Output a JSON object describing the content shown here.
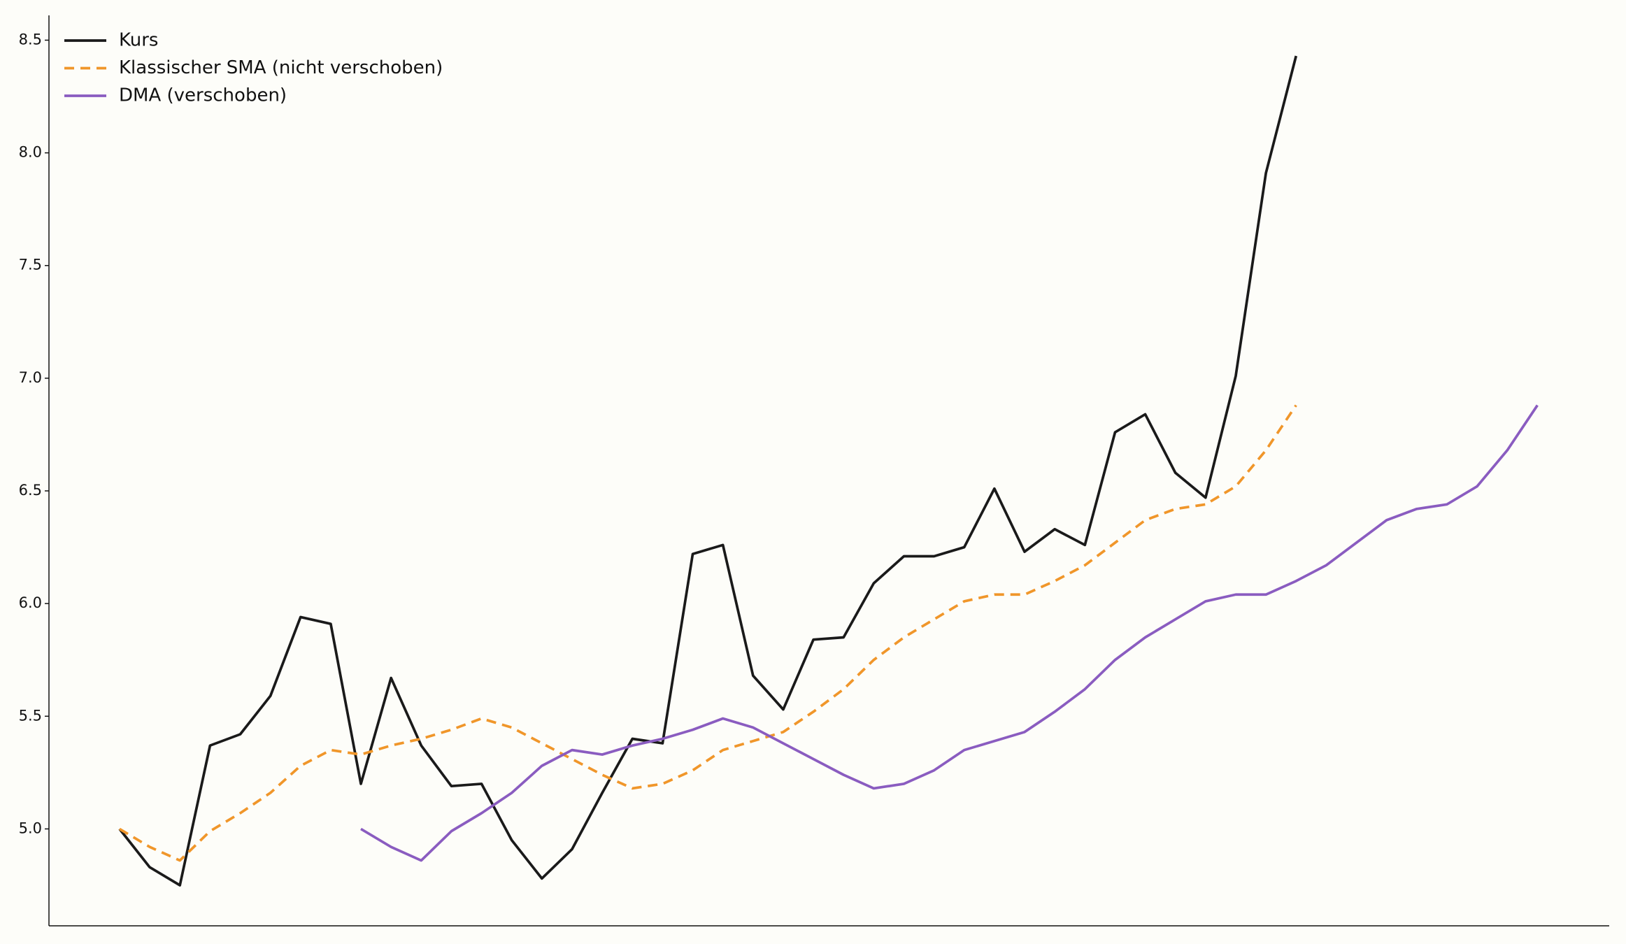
{
  "chart_data": {
    "type": "line",
    "x": [
      0,
      1,
      2,
      3,
      4,
      5,
      6,
      7,
      8,
      9,
      10,
      11,
      12,
      13,
      14,
      15,
      16,
      17,
      18,
      19,
      20,
      21,
      22,
      23,
      24,
      25,
      26,
      27,
      28,
      29,
      30,
      31,
      32,
      33,
      34,
      35,
      36,
      37,
      38,
      39,
      40,
      41,
      42,
      43,
      44,
      45,
      46,
      47
    ],
    "series": [
      {
        "name": "Kurs",
        "color": "#1a1a1a",
        "linestyle": "solid",
        "values": [
          5.0,
          4.83,
          4.75,
          5.37,
          5.42,
          5.59,
          5.94,
          5.91,
          5.2,
          5.67,
          5.37,
          5.19,
          5.2,
          4.95,
          4.78,
          4.91,
          5.16,
          5.4,
          5.38,
          6.22,
          6.26,
          5.68,
          5.53,
          5.84,
          5.85,
          6.09,
          6.21,
          6.21,
          6.25,
          6.51,
          6.23,
          6.33,
          6.26,
          6.76,
          6.84,
          6.58,
          6.47,
          7.01,
          7.91,
          8.43,
          null,
          null,
          null,
          null,
          null,
          null,
          null,
          null
        ]
      },
      {
        "name": "Klassischer SMA (nicht verschoben)",
        "color": "#f0962a",
        "linestyle": "dashed",
        "values": [
          5.0,
          4.92,
          4.86,
          4.99,
          5.07,
          5.16,
          5.28,
          5.35,
          5.33,
          5.37,
          5.4,
          5.44,
          5.49,
          5.45,
          5.38,
          5.31,
          5.24,
          5.18,
          5.2,
          5.26,
          5.35,
          5.39,
          5.43,
          5.52,
          5.62,
          5.75,
          5.85,
          5.93,
          6.01,
          6.04,
          6.04,
          6.1,
          6.17,
          6.27,
          6.37,
          6.42,
          6.44,
          6.52,
          6.68,
          6.88,
          null,
          null,
          null,
          null,
          null,
          null,
          null,
          null
        ]
      },
      {
        "name": "DMA (verschoben)",
        "color": "#8a5cc0",
        "linestyle": "solid",
        "values": [
          null,
          null,
          null,
          null,
          null,
          null,
          null,
          null,
          5.0,
          4.92,
          4.86,
          4.99,
          5.07,
          5.16,
          5.28,
          5.35,
          5.33,
          5.37,
          5.4,
          5.44,
          5.49,
          5.45,
          5.38,
          5.31,
          5.24,
          5.18,
          5.2,
          5.26,
          5.35,
          5.39,
          5.43,
          5.52,
          5.62,
          5.75,
          5.85,
          5.93,
          6.01,
          6.04,
          6.04,
          6.1,
          6.17,
          6.27,
          6.37,
          6.42,
          6.44,
          6.52,
          6.68,
          6.88
        ]
      }
    ],
    "xlim": [
      -2.34,
      49.38
    ],
    "ylim": [
      4.57,
      8.61
    ],
    "yticks": [
      {
        "value": 5,
        "label": "5.0"
      },
      5.5,
      {
        "value": 6,
        "label": "6.0"
      },
      6.5,
      {
        "value": 7,
        "label": "7.0"
      },
      7.5,
      {
        "value": 8,
        "label": "8.0"
      },
      8.5
    ],
    "legend": "upper left"
  }
}
